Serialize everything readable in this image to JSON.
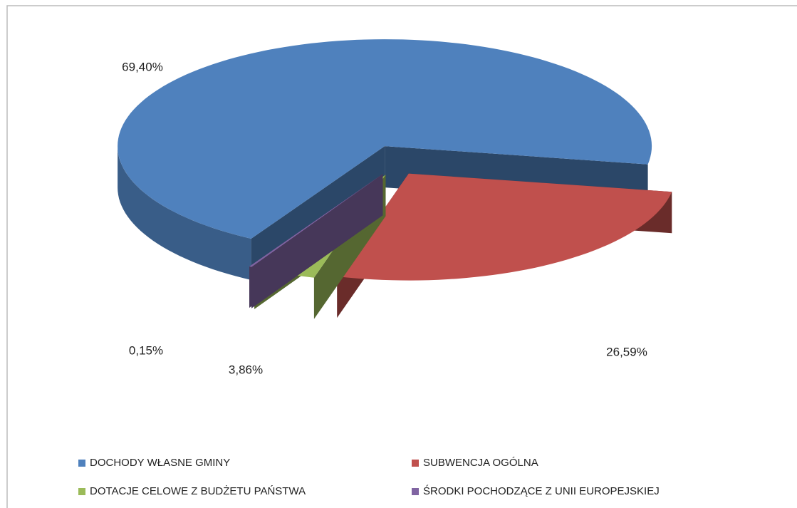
{
  "chart_data": {
    "type": "pie",
    "categories": [
      "DOCHODY WŁASNE GMINY",
      "SUBWENCJA OGÓLNA",
      "DOTACJE CELOWE Z BUDŻETU PAŃSTWA",
      "ŚRODKI POCHODZĄCE Z UNII EUROPEJSKIEJ"
    ],
    "values": [
      69.4,
      26.59,
      3.86,
      0.15
    ],
    "value_labels": [
      "69,40%",
      "26,59%",
      "3,86%",
      "0,15%"
    ],
    "colors": [
      "#4f81bd",
      "#c0504d",
      "#9bbb59",
      "#8064a2"
    ]
  }
}
